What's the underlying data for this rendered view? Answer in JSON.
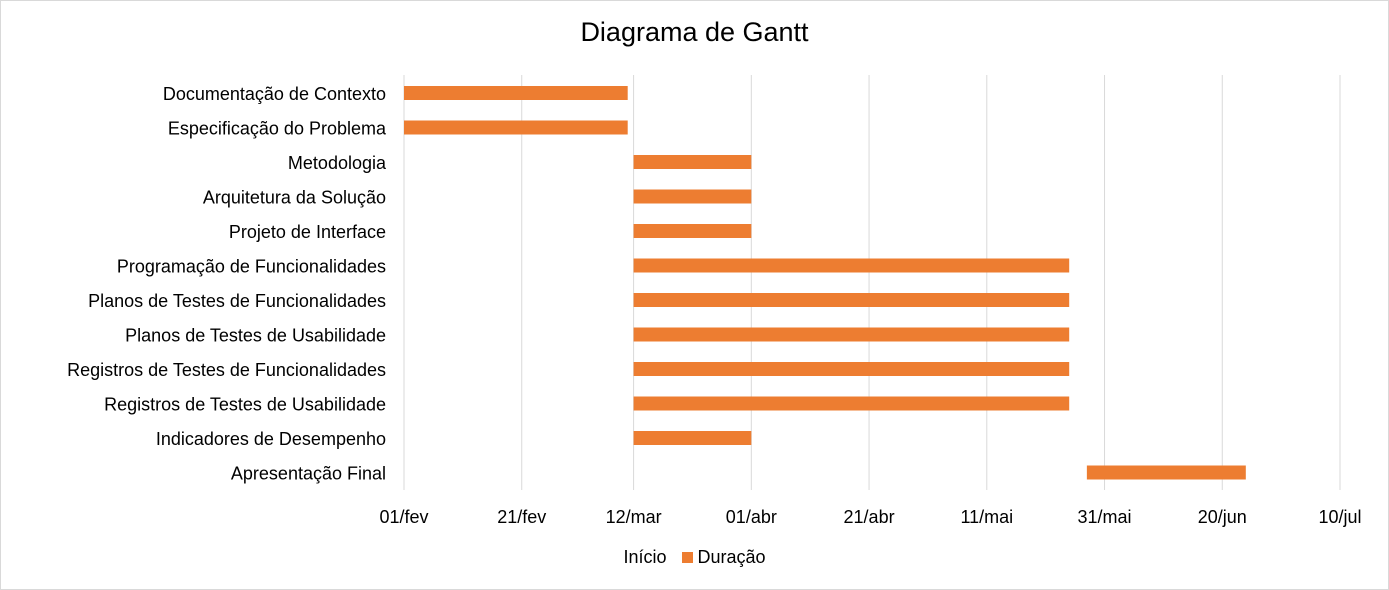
{
  "chart_data": {
    "type": "bar",
    "orientation": "horizontal",
    "stacked": true,
    "title": "Diagrama de Gantt",
    "categories": [
      "Documentação de Contexto",
      "Especificação do Problema",
      "Metodologia",
      "Arquitetura da Solução",
      "Projeto de Interface",
      "Programação de Funcionalidades ",
      "Planos de Testes de Funcionalidades",
      "Planos de Testes de Usabilidade",
      "Registros de Testes de Funcionalidades",
      "Registros de Testes de Usabilidade",
      "Indicadores de Desempenho",
      "Apresentação Final"
    ],
    "series": [
      {
        "name": "Início",
        "color": "none",
        "values": [
          0,
          0,
          39,
          39,
          39,
          39,
          39,
          39,
          39,
          39,
          39,
          116
        ]
      },
      {
        "name": "Duração",
        "color": "#ED7D31",
        "values": [
          38,
          38,
          20,
          20,
          20,
          74,
          74,
          74,
          74,
          74,
          20,
          27
        ]
      }
    ],
    "x_ticks": [
      {
        "value": 0,
        "label": "01/fev"
      },
      {
        "value": 20,
        "label": "21/fev"
      },
      {
        "value": 39,
        "label": "12/mar"
      },
      {
        "value": 59,
        "label": "01/abr"
      },
      {
        "value": 79,
        "label": "21/abr"
      },
      {
        "value": 99,
        "label": "11/mai"
      },
      {
        "value": 119,
        "label": "31/mai"
      },
      {
        "value": 139,
        "label": "20/jun"
      },
      {
        "value": 159,
        "label": "10/jul"
      }
    ],
    "xlim": [
      0,
      159
    ],
    "xlabel": "",
    "ylabel": "",
    "grid": true,
    "legend_position": "bottom"
  }
}
